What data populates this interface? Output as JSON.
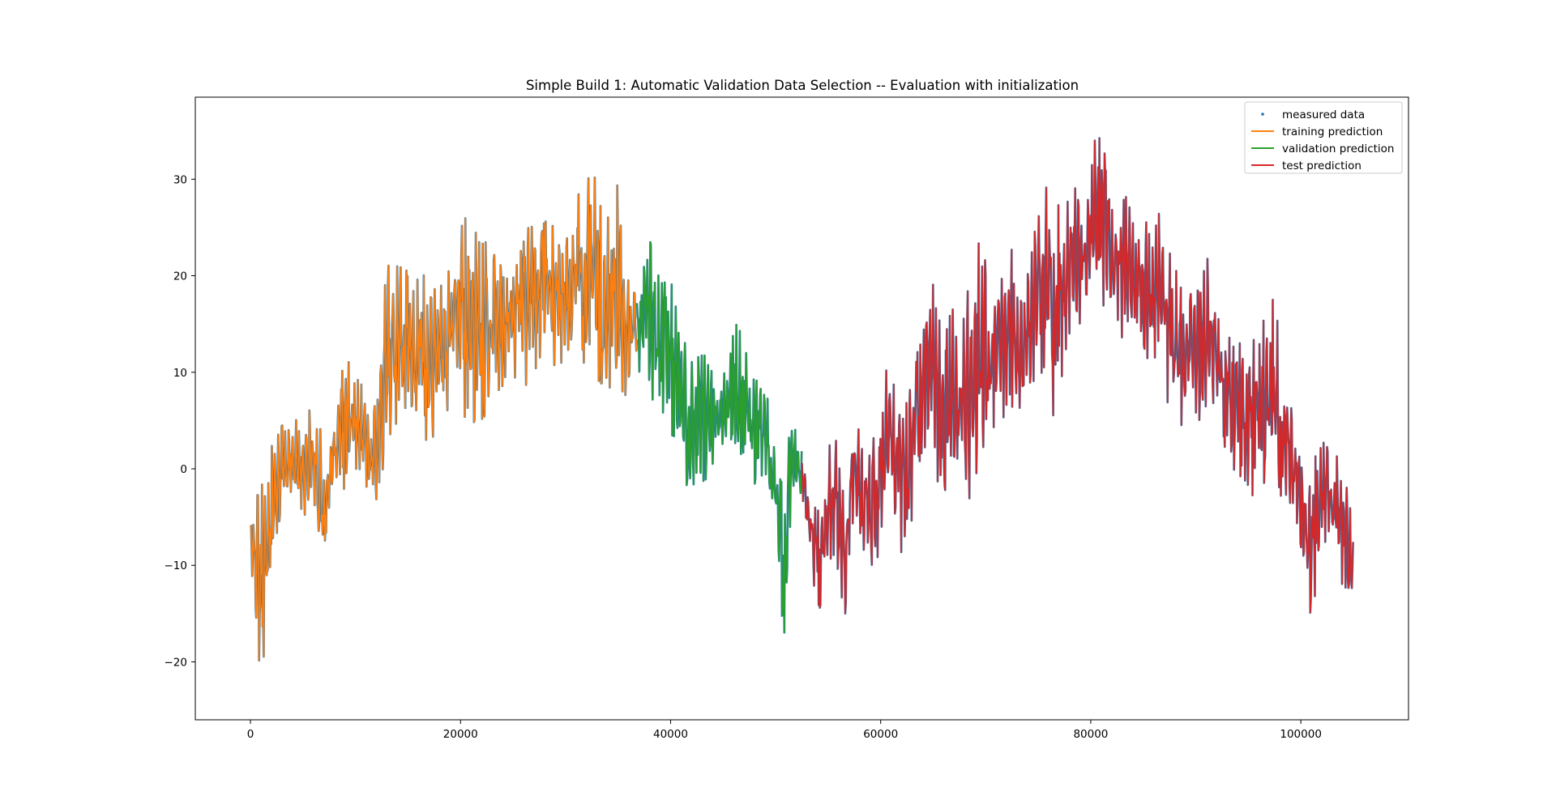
{
  "chart_data": {
    "type": "line",
    "title": "Simple Build 1: Automatic Validation Data Selection -- Evaluation with initialization",
    "xlabel": "",
    "ylabel": "",
    "xlim": [
      -5250,
      110250
    ],
    "ylim": [
      -26,
      38.5
    ],
    "xticks": [
      0,
      20000,
      40000,
      60000,
      80000,
      100000
    ],
    "xtick_labels": [
      "0",
      "20000",
      "40000",
      "60000",
      "80000",
      "100000"
    ],
    "yticks": [
      -20,
      -10,
      0,
      10,
      20,
      30
    ],
    "ytick_labels": [
      "−20",
      "−10",
      "0",
      "10",
      "20",
      "30"
    ],
    "grid": false,
    "legend_position": "top-right",
    "legend": [
      {
        "label": "measured data",
        "marker": "point",
        "color": "#1f77b4"
      },
      {
        "label": "training prediction",
        "marker": "line",
        "color": "#ff7f0e"
      },
      {
        "label": "validation prediction",
        "marker": "line",
        "color": "#2ca02c"
      },
      {
        "label": "test prediction",
        "marker": "line",
        "color": "#d62728"
      }
    ],
    "series": [
      {
        "name": "training prediction",
        "color": "#ff7f0e",
        "x_range": [
          0,
          36800
        ],
        "envelope": [
          {
            "x": 0,
            "low": -10,
            "high": -5
          },
          {
            "x": 500,
            "low": -18,
            "high": 0
          },
          {
            "x": 1000,
            "low": -23,
            "high": -1
          },
          {
            "x": 1500,
            "low": -17,
            "high": -3
          },
          {
            "x": 2000,
            "low": -11,
            "high": 4
          },
          {
            "x": 3000,
            "low": -4,
            "high": 5
          },
          {
            "x": 4000,
            "low": -5,
            "high": 6
          },
          {
            "x": 5000,
            "low": -5,
            "high": 5
          },
          {
            "x": 6000,
            "low": -6,
            "high": 8
          },
          {
            "x": 7000,
            "low": -11,
            "high": 3
          },
          {
            "x": 8000,
            "low": -3,
            "high": 6
          },
          {
            "x": 9000,
            "low": -2,
            "high": 12
          },
          {
            "x": 10000,
            "low": -1,
            "high": 10
          },
          {
            "x": 11000,
            "low": -3,
            "high": 8
          },
          {
            "x": 12000,
            "low": -4,
            "high": 8
          },
          {
            "x": 13000,
            "low": 2,
            "high": 22
          },
          {
            "x": 14000,
            "low": 5,
            "high": 21
          },
          {
            "x": 15000,
            "low": 4,
            "high": 23
          },
          {
            "x": 16000,
            "low": 4,
            "high": 20
          },
          {
            "x": 17000,
            "low": 0,
            "high": 21
          },
          {
            "x": 18000,
            "low": 6,
            "high": 19
          },
          {
            "x": 19000,
            "low": 6,
            "high": 23
          },
          {
            "x": 20000,
            "low": 6,
            "high": 26
          },
          {
            "x": 21000,
            "low": 4,
            "high": 27
          },
          {
            "x": 22000,
            "low": 5,
            "high": 24
          },
          {
            "x": 23000,
            "low": 6,
            "high": 23
          },
          {
            "x": 24000,
            "low": 8,
            "high": 22
          },
          {
            "x": 25000,
            "low": 9,
            "high": 22
          },
          {
            "x": 26000,
            "low": 8,
            "high": 27
          },
          {
            "x": 27000,
            "low": 10,
            "high": 28
          },
          {
            "x": 28000,
            "low": 11,
            "high": 26
          },
          {
            "x": 29000,
            "low": 10,
            "high": 27
          },
          {
            "x": 30000,
            "low": 10,
            "high": 26
          },
          {
            "x": 31000,
            "low": 12,
            "high": 28
          },
          {
            "x": 32000,
            "low": 10,
            "high": 30
          },
          {
            "x": 33000,
            "low": 9,
            "high": 33
          },
          {
            "x": 34000,
            "low": 8,
            "high": 26
          },
          {
            "x": 35000,
            "low": 6,
            "high": 30
          },
          {
            "x": 36000,
            "low": 7,
            "high": 22
          },
          {
            "x": 36800,
            "low": 10,
            "high": 18
          }
        ]
      },
      {
        "name": "validation prediction",
        "color": "#2ca02c",
        "x_range": [
          36800,
          52500
        ],
        "envelope": [
          {
            "x": 36800,
            "low": 10,
            "high": 18
          },
          {
            "x": 37500,
            "low": 10,
            "high": 22
          },
          {
            "x": 38000,
            "low": 8,
            "high": 24
          },
          {
            "x": 39000,
            "low": 5,
            "high": 20
          },
          {
            "x": 40000,
            "low": 4,
            "high": 22
          },
          {
            "x": 41000,
            "low": 0,
            "high": 14
          },
          {
            "x": 42000,
            "low": -4,
            "high": 12
          },
          {
            "x": 43000,
            "low": -2,
            "high": 13
          },
          {
            "x": 44000,
            "low": 0,
            "high": 12
          },
          {
            "x": 45000,
            "low": 2,
            "high": 10
          },
          {
            "x": 46000,
            "low": 0,
            "high": 16
          },
          {
            "x": 47000,
            "low": 1,
            "high": 14
          },
          {
            "x": 48000,
            "low": -2,
            "high": 10
          },
          {
            "x": 49000,
            "low": -3,
            "high": 9
          },
          {
            "x": 50000,
            "low": -8,
            "high": 3
          },
          {
            "x": 50800,
            "low": -18,
            "high": -3
          },
          {
            "x": 51500,
            "low": -5,
            "high": 7
          },
          {
            "x": 52500,
            "low": -3,
            "high": 2
          }
        ]
      },
      {
        "name": "test prediction",
        "color": "#d62728",
        "x_range": [
          52500,
          105000
        ],
        "envelope": [
          {
            "x": 52500,
            "low": -3,
            "high": 2
          },
          {
            "x": 53500,
            "low": -13,
            "high": -3
          },
          {
            "x": 54500,
            "low": -15,
            "high": 0
          },
          {
            "x": 55000,
            "low": -10,
            "high": 4
          },
          {
            "x": 56000,
            "low": -12,
            "high": 3
          },
          {
            "x": 56500,
            "low": -18,
            "high": 1
          },
          {
            "x": 57500,
            "low": -7,
            "high": 6
          },
          {
            "x": 58500,
            "low": -10,
            "high": 2
          },
          {
            "x": 59500,
            "low": -14,
            "high": 6
          },
          {
            "x": 60500,
            "low": -3,
            "high": 12
          },
          {
            "x": 61500,
            "low": -6,
            "high": 9
          },
          {
            "x": 62500,
            "low": -12,
            "high": 10
          },
          {
            "x": 63500,
            "low": 0,
            "high": 15
          },
          {
            "x": 64500,
            "low": 0,
            "high": 22
          },
          {
            "x": 65500,
            "low": -3,
            "high": 17
          },
          {
            "x": 66500,
            "low": -2,
            "high": 18
          },
          {
            "x": 67500,
            "low": -2,
            "high": 16
          },
          {
            "x": 68500,
            "low": -4,
            "high": 20
          },
          {
            "x": 69500,
            "low": 0,
            "high": 25
          },
          {
            "x": 70500,
            "low": 3,
            "high": 18
          },
          {
            "x": 71500,
            "low": 5,
            "high": 23
          },
          {
            "x": 72500,
            "low": 6,
            "high": 23
          },
          {
            "x": 73500,
            "low": 5,
            "high": 20
          },
          {
            "x": 74500,
            "low": 8,
            "high": 25
          },
          {
            "x": 75500,
            "low": 10,
            "high": 30
          },
          {
            "x": 76500,
            "low": 5,
            "high": 28
          },
          {
            "x": 77500,
            "low": 10,
            "high": 27
          },
          {
            "x": 78500,
            "low": 14,
            "high": 32
          },
          {
            "x": 79500,
            "low": 15,
            "high": 30
          },
          {
            "x": 80500,
            "low": 18,
            "high": 35
          },
          {
            "x": 81500,
            "low": 14,
            "high": 34
          },
          {
            "x": 82500,
            "low": 13,
            "high": 28
          },
          {
            "x": 83500,
            "low": 14,
            "high": 29
          },
          {
            "x": 84500,
            "low": 13,
            "high": 26
          },
          {
            "x": 85500,
            "low": 11,
            "high": 26
          },
          {
            "x": 86500,
            "low": 9,
            "high": 30
          },
          {
            "x": 87500,
            "low": 6,
            "high": 24
          },
          {
            "x": 88500,
            "low": 4,
            "high": 19
          },
          {
            "x": 89500,
            "low": 5,
            "high": 20
          },
          {
            "x": 90500,
            "low": 5,
            "high": 22
          },
          {
            "x": 91500,
            "low": 6,
            "high": 22
          },
          {
            "x": 92500,
            "low": 3,
            "high": 15
          },
          {
            "x": 93500,
            "low": 0,
            "high": 14
          },
          {
            "x": 94500,
            "low": -2,
            "high": 15
          },
          {
            "x": 95500,
            "low": -3,
            "high": 16
          },
          {
            "x": 96500,
            "low": -2,
            "high": 18
          },
          {
            "x": 97500,
            "low": -3,
            "high": 18
          },
          {
            "x": 98500,
            "low": -3,
            "high": 10
          },
          {
            "x": 99500,
            "low": -5,
            "high": 5
          },
          {
            "x": 100500,
            "low": -14,
            "high": -1
          },
          {
            "x": 101000,
            "low": -16,
            "high": 0
          },
          {
            "x": 102000,
            "low": -8,
            "high": 4
          },
          {
            "x": 103000,
            "low": -10,
            "high": 2
          },
          {
            "x": 104000,
            "low": -14,
            "high": 2
          },
          {
            "x": 105000,
            "low": -15,
            "high": -6
          }
        ]
      }
    ]
  }
}
